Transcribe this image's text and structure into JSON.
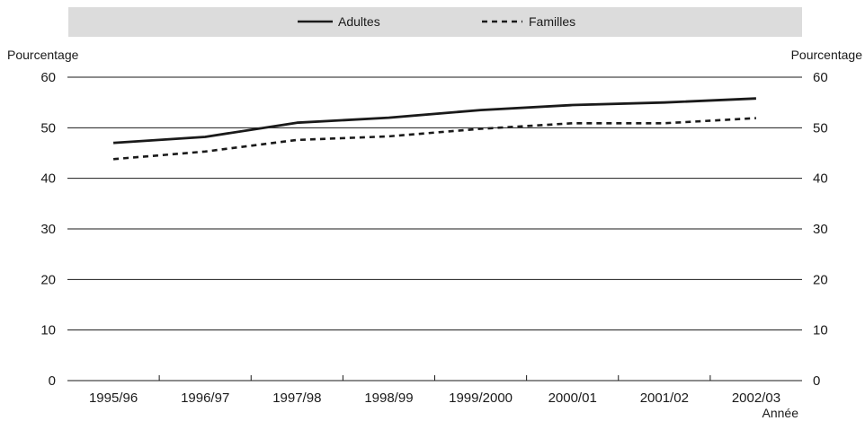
{
  "chart_data": {
    "type": "line",
    "categories": [
      "1995/96",
      "1996/97",
      "1997/98",
      "1998/99",
      "1999/2000",
      "2000/01",
      "2001/02",
      "2002/03"
    ],
    "series": [
      {
        "name": "Adultes",
        "values": [
          47,
          48.2,
          51,
          52,
          53.5,
          54.5,
          55,
          55.8
        ],
        "style": "solid"
      },
      {
        "name": "Familles",
        "values": [
          43.8,
          45.3,
          47.6,
          48.3,
          49.8,
          50.9,
          50.9,
          51.9
        ],
        "style": "dashed"
      }
    ],
    "ylim": [
      0,
      60
    ],
    "yticks": [
      0,
      10,
      20,
      30,
      40,
      50,
      60
    ],
    "ylabel_left": "Pourcentage",
    "ylabel_right": "Pourcentage",
    "xlabel": "Année",
    "grid": true,
    "legend_position": "top-center",
    "colors": {
      "line": "#1a1a1a",
      "legend_bg": "#dcdcdc",
      "grid": "#1a1a1a"
    }
  }
}
